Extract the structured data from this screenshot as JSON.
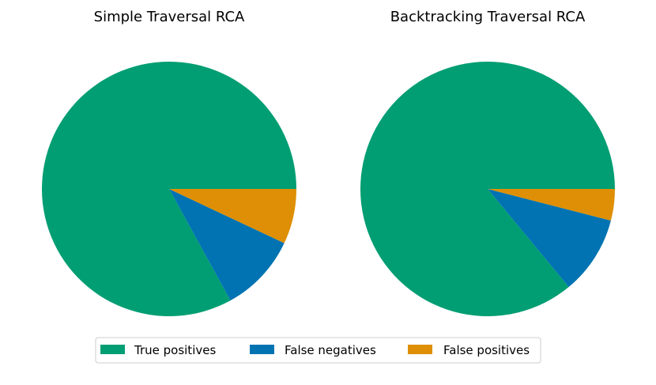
{
  "legend": {
    "placement": "bottom-center",
    "items": [
      {
        "label": "True positives",
        "color": "#029e73"
      },
      {
        "label": "False negatives",
        "color": "#0173b2"
      },
      {
        "label": "False positives",
        "color": "#de8f05"
      }
    ]
  },
  "chart_data": [
    {
      "type": "pie",
      "title": "Simple Traversal RCA",
      "labels": [
        "True positives",
        "False negatives",
        "False positives"
      ],
      "values": [
        83,
        10,
        7
      ],
      "colors": [
        "#029e73",
        "#0173b2",
        "#de8f05"
      ],
      "start_angle_deg": 0,
      "direction": "counterclockwise"
    },
    {
      "type": "pie",
      "title": "Backtracking Traversal RCA",
      "labels": [
        "True positives",
        "False negatives",
        "False positives"
      ],
      "values": [
        86,
        10,
        4
      ],
      "colors": [
        "#029e73",
        "#0173b2",
        "#de8f05"
      ],
      "start_angle_deg": 0,
      "direction": "counterclockwise"
    }
  ]
}
